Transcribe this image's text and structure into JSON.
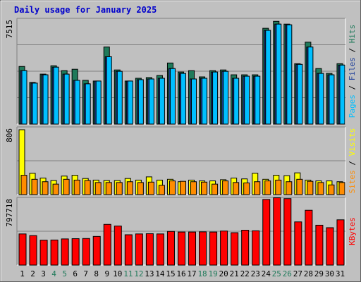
{
  "chart_data": [
    {
      "type": "bar",
      "title": "Daily usage for January 2025",
      "ylabel_max": "7515",
      "ymax": 7515,
      "legend": [
        "Pages",
        "Files",
        "Hits"
      ],
      "categories": [
        "1",
        "2",
        "3",
        "4",
        "5",
        "6",
        "7",
        "8",
        "9",
        "10",
        "11",
        "12",
        "13",
        "14",
        "15",
        "16",
        "17",
        "18",
        "19",
        "20",
        "21",
        "22",
        "23",
        "24",
        "25",
        "26",
        "27",
        "28",
        "29",
        "30",
        "31"
      ],
      "weekend_days": [
        "4",
        "5",
        "11",
        "12",
        "18",
        "19",
        "25",
        "26"
      ],
      "series": [
        {
          "name": "Hits",
          "color": "#1f7a5a",
          "values": [
            4150,
            3000,
            3600,
            4200,
            3850,
            3950,
            3150,
            3100,
            5550,
            3900,
            3100,
            3300,
            3350,
            3500,
            4400,
            3750,
            3850,
            3400,
            3850,
            3900,
            3550,
            3550,
            3550,
            6900,
            7400,
            7200,
            4350,
            5900,
            4000,
            3650,
            4350
          ]
        },
        {
          "name": "Files",
          "color": "#1f3f9a",
          "values": [
            3850,
            2950,
            3550,
            4100,
            3600,
            3150,
            2900,
            3100,
            4850,
            3800,
            3100,
            3200,
            3250,
            3300,
            4000,
            3650,
            3250,
            3300,
            3750,
            3800,
            3300,
            3450,
            3450,
            6750,
            7200,
            7150,
            4300,
            5550,
            3650,
            3550,
            4250
          ]
        },
        {
          "name": "Pages",
          "color": "#00bfff",
          "values": [
            3850,
            2950,
            3550,
            4100,
            3600,
            3150,
            2900,
            3100,
            4850,
            3800,
            3100,
            3200,
            3250,
            3300,
            4000,
            3650,
            3250,
            3300,
            3750,
            3800,
            3300,
            3450,
            3450,
            6750,
            7200,
            7150,
            4300,
            5550,
            3650,
            3550,
            4250
          ]
        }
      ]
    },
    {
      "type": "bar",
      "ylabel_max": "806",
      "ymax": 806,
      "legend": [
        "Sites",
        "Visits"
      ],
      "series": [
        {
          "name": "Visits",
          "color": "#ffff00",
          "values": [
            806,
            265,
            205,
            175,
            230,
            240,
            200,
            180,
            175,
            175,
            200,
            180,
            220,
            180,
            190,
            160,
            180,
            170,
            170,
            185,
            205,
            195,
            265,
            190,
            240,
            235,
            270,
            180,
            170,
            170,
            160
          ]
        },
        {
          "name": "Sites",
          "color": "#ff8c00",
          "values": [
            240,
            190,
            160,
            130,
            190,
            180,
            175,
            150,
            150,
            150,
            160,
            150,
            155,
            115,
            170,
            165,
            160,
            155,
            130,
            170,
            150,
            145,
            160,
            170,
            180,
            160,
            190,
            165,
            150,
            120,
            150
          ]
        }
      ]
    },
    {
      "type": "bar",
      "ylabel_max": "797718",
      "ymax": 797718,
      "legend": [
        "KBytes"
      ],
      "series": [
        {
          "name": "KBytes",
          "color": "#ff0000",
          "values": [
            375000,
            355000,
            300000,
            302000,
            315000,
            318000,
            320000,
            345000,
            490000,
            470000,
            365000,
            375000,
            378000,
            375000,
            405000,
            398000,
            398000,
            400000,
            398000,
            410000,
            390000,
            420000,
            413000,
            790000,
            810000,
            800000,
            520000,
            660000,
            480000,
            450000,
            545000
          ]
        }
      ]
    }
  ]
}
